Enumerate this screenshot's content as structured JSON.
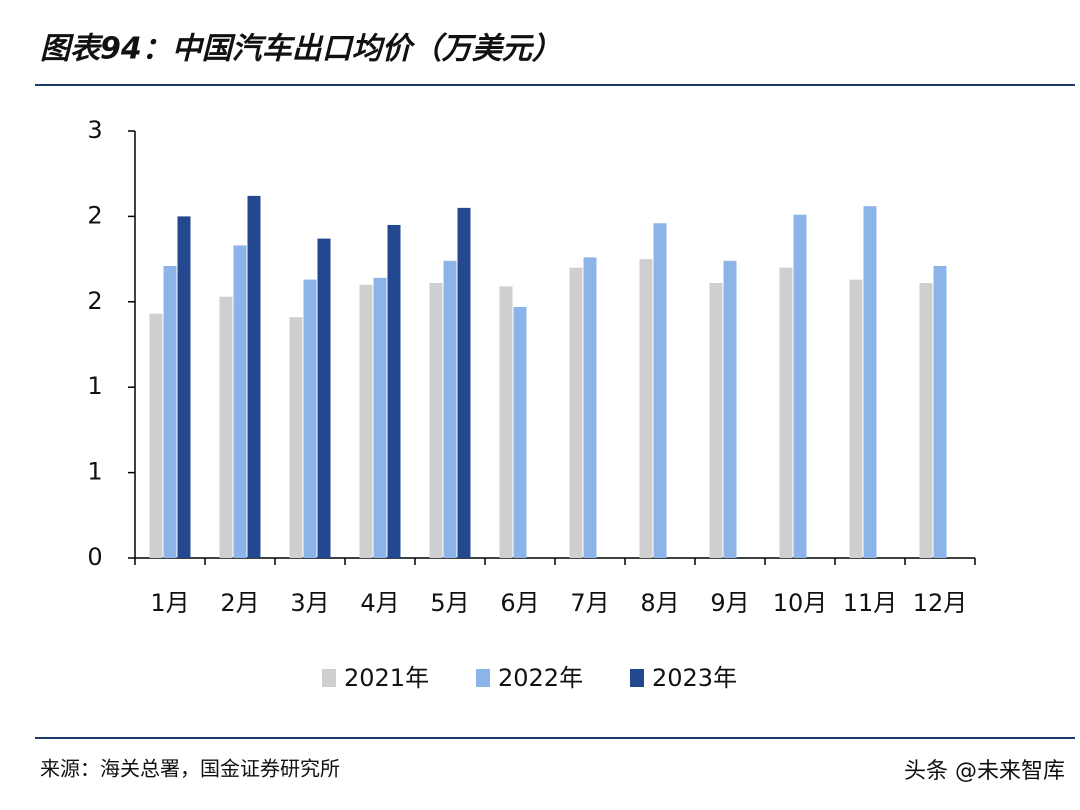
{
  "header": {
    "title": "图表94：中国汽车出口均价（万美元）"
  },
  "chart_data": {
    "type": "bar",
    "categories": [
      "1月",
      "2月",
      "3月",
      "4月",
      "5月",
      "6月",
      "7月",
      "8月",
      "9月",
      "10月",
      "11月",
      "12月"
    ],
    "series": [
      {
        "name": "2021年",
        "color": "#cfcfcf",
        "values": [
          1.43,
          1.53,
          1.41,
          1.6,
          1.61,
          1.59,
          1.7,
          1.75,
          1.61,
          1.7,
          1.63,
          1.61
        ]
      },
      {
        "name": "2022年",
        "color": "#8db4e8",
        "values": [
          1.71,
          1.83,
          1.63,
          1.64,
          1.74,
          1.47,
          1.76,
          1.96,
          1.74,
          2.01,
          2.06,
          1.71
        ]
      },
      {
        "name": "2023年",
        "color": "#24488f",
        "values": [
          2.0,
          2.12,
          1.87,
          1.95,
          2.05,
          null,
          null,
          null,
          null,
          null,
          null,
          null
        ]
      }
    ],
    "ylim": [
      0,
      2.5
    ],
    "yticks": [
      0,
      {
        "value": 0.5,
        "label": "1"
      },
      {
        "value": 1,
        "label": "1"
      },
      {
        "value": 1.5,
        "label": "2"
      },
      {
        "value": 2,
        "label": "2"
      },
      {
        "value": 2.5,
        "label": "3"
      }
    ],
    "legend": "bottom"
  },
  "footer": {
    "source": "来源：海关总署，国金证券研究所",
    "watermark": "头条 @未来智库"
  }
}
